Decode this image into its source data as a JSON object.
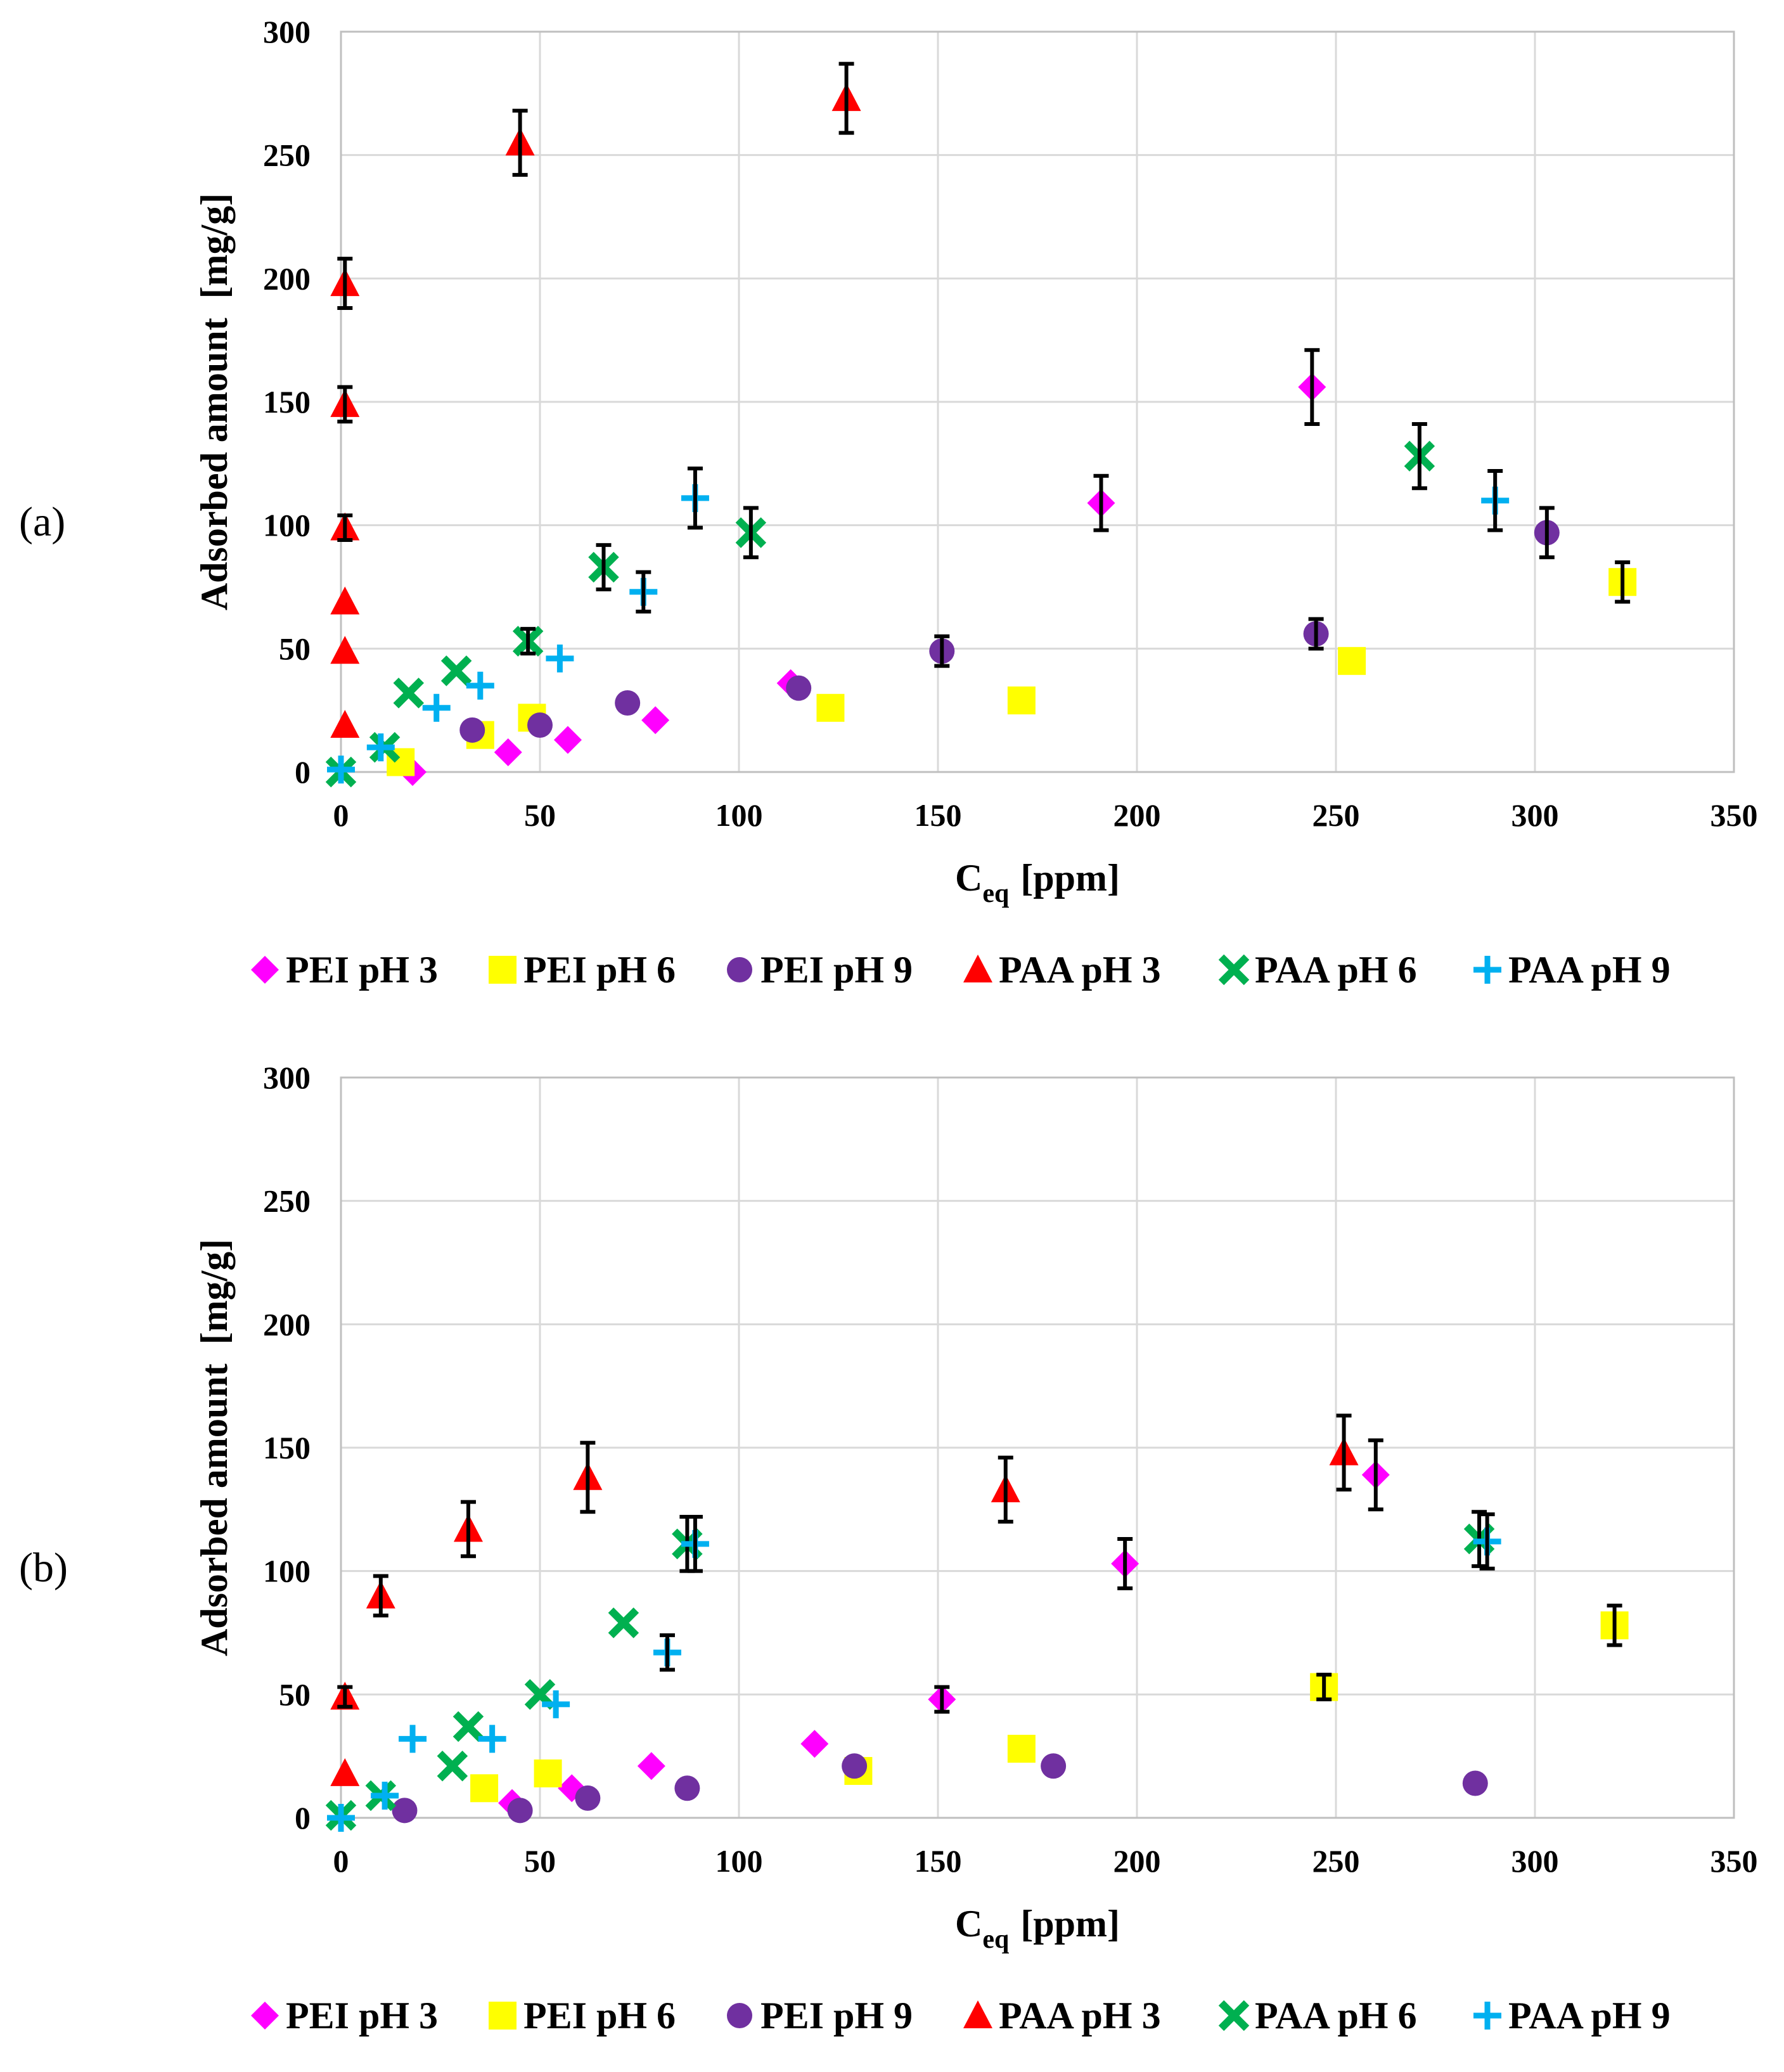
{
  "series_styles": {
    "PEI pH 3": {
      "marker": "diamond",
      "color": "#ff00ff"
    },
    "PEI pH 6": {
      "marker": "square",
      "color": "#ffff00"
    },
    "PEI pH 9": {
      "marker": "circle",
      "color": "#7030a0"
    },
    "PAA pH 3": {
      "marker": "triangle",
      "color": "#ff0000"
    },
    "PAA pH 6": {
      "marker": "x",
      "color": "#00b050"
    },
    "PAA pH 9": {
      "marker": "plus",
      "color": "#00b0f0"
    }
  },
  "chart_data": [
    {
      "panel_label": "(a)",
      "type": "scatter",
      "xlabel_main": "C",
      "xlabel_sub": "eq",
      "xlabel_unit": "[ppm]",
      "ylabel": "Adsorbed amount  [mg/g]",
      "xlim": [
        0,
        350
      ],
      "ylim": [
        0,
        300
      ],
      "xticks": [
        0,
        50,
        100,
        150,
        200,
        250,
        300,
        350
      ],
      "yticks": [
        0,
        50,
        100,
        150,
        200,
        250,
        300
      ],
      "grid": true,
      "legend_position": "bottom",
      "series": [
        {
          "name": "PEI pH 3",
          "points": [
            [
              18,
              0,
              0
            ],
            [
              42,
              8,
              0
            ],
            [
              57,
              13,
              0
            ],
            [
              79,
              21,
              0
            ],
            [
              113,
              36,
              0
            ],
            [
              191,
              109,
              11
            ],
            [
              244,
              156,
              15
            ]
          ]
        },
        {
          "name": "PEI pH 6",
          "points": [
            [
              15,
              4,
              0
            ],
            [
              35,
              15,
              0
            ],
            [
              48,
              22,
              0
            ],
            [
              123,
              26,
              0
            ],
            [
              171,
              29,
              0
            ],
            [
              254,
              45,
              0
            ],
            [
              322,
              77,
              8
            ]
          ]
        },
        {
          "name": "PEI pH 9",
          "points": [
            [
              33,
              17,
              0
            ],
            [
              50,
              19,
              0
            ],
            [
              72,
              28,
              0
            ],
            [
              115,
              34,
              0
            ],
            [
              151,
              49,
              6
            ],
            [
              245,
              56,
              6
            ],
            [
              303,
              97,
              10
            ]
          ]
        },
        {
          "name": "PAA pH 3",
          "points": [
            [
              1,
              19,
              0
            ],
            [
              1,
              49,
              0
            ],
            [
              1,
              69,
              0
            ],
            [
              1,
              99,
              5
            ],
            [
              1,
              149,
              7
            ],
            [
              1,
              198,
              10
            ],
            [
              45,
              255,
              13
            ],
            [
              127,
              273,
              14
            ]
          ]
        },
        {
          "name": "PAA pH 6",
          "points": [
            [
              0,
              0,
              0
            ],
            [
              11,
              10,
              0
            ],
            [
              17,
              32,
              0
            ],
            [
              29,
              41,
              0
            ],
            [
              47,
              53,
              5
            ],
            [
              66,
              83,
              9
            ],
            [
              103,
              97,
              10
            ],
            [
              271,
              128,
              13
            ]
          ]
        },
        {
          "name": "PAA pH 9",
          "points": [
            [
              0,
              1,
              0
            ],
            [
              10,
              10,
              0
            ],
            [
              24,
              26,
              0
            ],
            [
              35,
              35,
              0
            ],
            [
              55,
              46,
              0
            ],
            [
              76,
              73,
              8
            ],
            [
              89,
              111,
              12
            ],
            [
              290,
              110,
              12
            ]
          ]
        }
      ]
    },
    {
      "panel_label": "(b)",
      "type": "scatter",
      "xlabel_main": "C",
      "xlabel_sub": "eq",
      "xlabel_unit": "[ppm]",
      "ylabel": "Adsorbed amount  [mg/g]",
      "xlim": [
        0,
        350
      ],
      "ylim": [
        0,
        300
      ],
      "xticks": [
        0,
        50,
        100,
        150,
        200,
        250,
        300,
        350
      ],
      "yticks": [
        0,
        50,
        100,
        150,
        200,
        250,
        300
      ],
      "grid": true,
      "legend_position": "bottom",
      "series": [
        {
          "name": "PEI pH 3",
          "points": [
            [
              43,
              6,
              0
            ],
            [
              58,
              12,
              0
            ],
            [
              78,
              21,
              0
            ],
            [
              119,
              30,
              0
            ],
            [
              151,
              48,
              5
            ],
            [
              197,
              103,
              10
            ],
            [
              260,
              139,
              14
            ]
          ]
        },
        {
          "name": "PEI pH 6",
          "points": [
            [
              36,
              12,
              0
            ],
            [
              52,
              18,
              0
            ],
            [
              130,
              19,
              0
            ],
            [
              171,
              28,
              0
            ],
            [
              247,
              53,
              5
            ],
            [
              320,
              78,
              8
            ]
          ]
        },
        {
          "name": "PEI pH 9",
          "points": [
            [
              16,
              3,
              0
            ],
            [
              45,
              3,
              0
            ],
            [
              62,
              8,
              0
            ],
            [
              87,
              12,
              0
            ],
            [
              129,
              21,
              0
            ],
            [
              179,
              21,
              0
            ],
            [
              285,
              14,
              0
            ]
          ]
        },
        {
          "name": "PAA pH 3",
          "points": [
            [
              1,
              18,
              0
            ],
            [
              1,
              49,
              4
            ],
            [
              10,
              90,
              8
            ],
            [
              32,
              117,
              11
            ],
            [
              62,
              138,
              14
            ],
            [
              167,
              133,
              13
            ],
            [
              252,
              148,
              15
            ]
          ]
        },
        {
          "name": "PAA pH 6",
          "points": [
            [
              0,
              1,
              0
            ],
            [
              10,
              9,
              0
            ],
            [
              28,
              21,
              0
            ],
            [
              32,
              37,
              0
            ],
            [
              50,
              50,
              0
            ],
            [
              71,
              79,
              0
            ],
            [
              87,
              111,
              11
            ],
            [
              286,
              113,
              11
            ]
          ]
        },
        {
          "name": "PAA pH 9",
          "points": [
            [
              0,
              0,
              0
            ],
            [
              11,
              9,
              0
            ],
            [
              18,
              32,
              0
            ],
            [
              38,
              32,
              0
            ],
            [
              54,
              46,
              0
            ],
            [
              82,
              67,
              7
            ],
            [
              89,
              111,
              11
            ],
            [
              288,
              112,
              11
            ]
          ]
        }
      ]
    }
  ]
}
